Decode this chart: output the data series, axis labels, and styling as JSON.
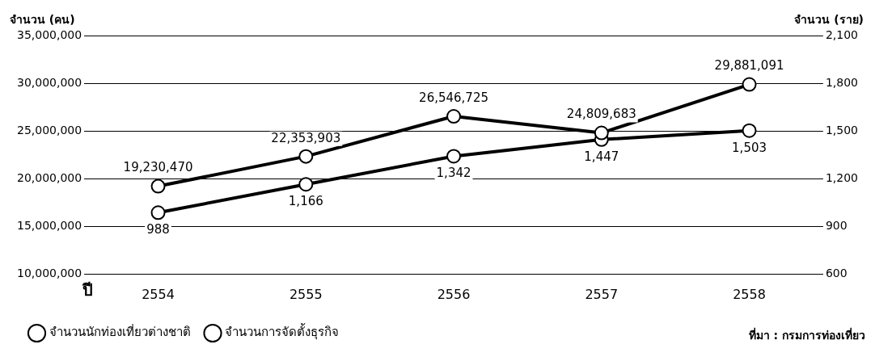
{
  "chart_data": {
    "type": "line",
    "xlabel": "ปี",
    "ylabel": "จำนวน (คน)",
    "y2label": "จำนวน (ราย)",
    "categories": [
      "2554",
      "2555",
      "2556",
      "2557",
      "2558"
    ],
    "series": [
      {
        "name": "จำนวนนักท่องเที่ยวต่างชาติ",
        "color": "#000000",
        "values": [
          19230470,
          22353903,
          26546725,
          24809683,
          29881091
        ],
        "value_labels": [
          "19,230,470",
          "22,353,903",
          "26,546,725",
          "24,809,683",
          "29,881,091"
        ]
      },
      {
        "name": "จำนวนการจัดตั้งธุรกิจ",
        "color": "#000000",
        "axis": "y2",
        "values": [
          988,
          1166,
          1342,
          1447,
          1503
        ],
        "value_labels": [
          "988",
          "1,166",
          "1,342",
          "1,447",
          "1,503"
        ]
      }
    ],
    "ylim": [
      10000000,
      35000000
    ],
    "yticks": [
      {
        "value": 10000000,
        "label": "10,000,000"
      },
      {
        "value": 15000000,
        "label": "15,000,000"
      },
      {
        "value": 20000000,
        "label": "20,000,000"
      },
      {
        "value": 25000000,
        "label": "25,000,000"
      },
      {
        "value": 30000000,
        "label": "30,000,000"
      },
      {
        "value": 35000000,
        "label": "35,000,000"
      }
    ],
    "y2lim": [
      600,
      2100
    ],
    "y2ticks": [
      600,
      900,
      {
        "value": 1200,
        "label": "1,200"
      },
      {
        "value": 1500,
        "label": "1,500"
      },
      {
        "value": 1800,
        "label": "1,800"
      },
      {
        "value": 2100,
        "label": "2,100"
      }
    ],
    "grid": "y",
    "legend": "bottom",
    "marker": "circle",
    "line_style": "solid",
    "annotations": [
      "ที่มา : กรมการท่องเที่ยว"
    ]
  }
}
